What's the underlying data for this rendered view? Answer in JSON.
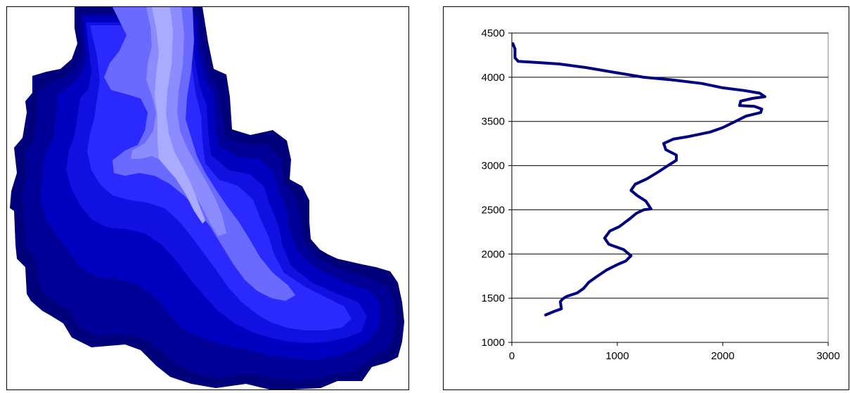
{
  "map": {
    "colors": {
      "outline": "#000080",
      "dark_navy": "#00007a",
      "navy": "#000099",
      "deep_blue": "#0000c0",
      "medium_blue": "#1010e0",
      "bright_blue": "#2a2aff",
      "light_blue": "#6a6aff",
      "pale_blue": "#8c8cff",
      "lightest_blue": "#aaaaff"
    }
  },
  "chart_data": {
    "type": "line",
    "title": "",
    "xlabel": "",
    "ylabel": "",
    "xlim": [
      0,
      3000
    ],
    "ylim": [
      1000,
      4500
    ],
    "x_ticks": [
      0,
      1000,
      2000,
      3000
    ],
    "y_ticks": [
      1000,
      1500,
      2000,
      2500,
      3000,
      3500,
      4000,
      4500
    ],
    "grid": "horizontal",
    "legend": "none",
    "color": "#000080",
    "series": [
      {
        "name": "",
        "points": [
          [
            320,
            1310
          ],
          [
            400,
            1350
          ],
          [
            470,
            1380
          ],
          [
            460,
            1460
          ],
          [
            480,
            1490
          ],
          [
            520,
            1520
          ],
          [
            620,
            1560
          ],
          [
            680,
            1610
          ],
          [
            730,
            1680
          ],
          [
            800,
            1740
          ],
          [
            900,
            1820
          ],
          [
            1000,
            1880
          ],
          [
            1080,
            1920
          ],
          [
            1130,
            1980
          ],
          [
            1060,
            2050
          ],
          [
            920,
            2110
          ],
          [
            880,
            2180
          ],
          [
            930,
            2260
          ],
          [
            1020,
            2310
          ],
          [
            1120,
            2400
          ],
          [
            1180,
            2460
          ],
          [
            1250,
            2500
          ],
          [
            1320,
            2510
          ],
          [
            1270,
            2600
          ],
          [
            1190,
            2660
          ],
          [
            1130,
            2720
          ],
          [
            1170,
            2790
          ],
          [
            1280,
            2850
          ],
          [
            1390,
            2930
          ],
          [
            1480,
            3000
          ],
          [
            1560,
            3060
          ],
          [
            1560,
            3120
          ],
          [
            1460,
            3180
          ],
          [
            1440,
            3250
          ],
          [
            1530,
            3300
          ],
          [
            1680,
            3330
          ],
          [
            1880,
            3380
          ],
          [
            2000,
            3430
          ],
          [
            2120,
            3500
          ],
          [
            2220,
            3560
          ],
          [
            2360,
            3600
          ],
          [
            2370,
            3640
          ],
          [
            2300,
            3670
          ],
          [
            2160,
            3680
          ],
          [
            2170,
            3730
          ],
          [
            2280,
            3760
          ],
          [
            2400,
            3780
          ],
          [
            2350,
            3820
          ],
          [
            2200,
            3850
          ],
          [
            2000,
            3880
          ],
          [
            1800,
            3930
          ],
          [
            1520,
            3970
          ],
          [
            1250,
            4000
          ],
          [
            1000,
            4050
          ],
          [
            700,
            4110
          ],
          [
            450,
            4150
          ],
          [
            200,
            4170
          ],
          [
            60,
            4180
          ],
          [
            30,
            4220
          ],
          [
            30,
            4320
          ],
          [
            10,
            4380
          ]
        ]
      }
    ]
  }
}
